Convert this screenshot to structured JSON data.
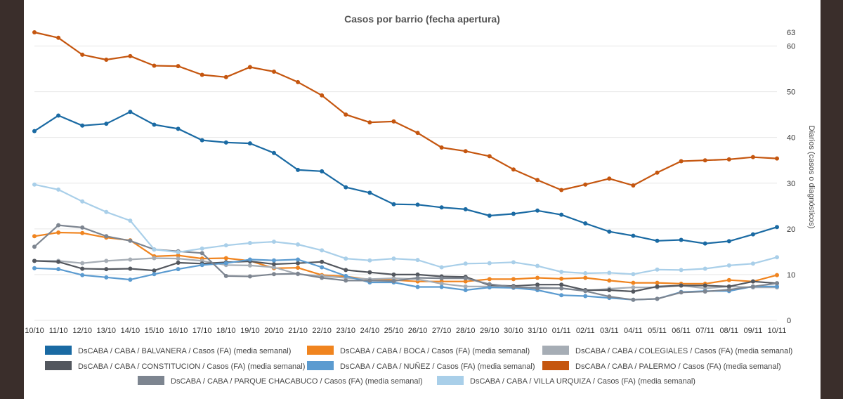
{
  "chart_data": {
    "type": "line",
    "title": "Casos por barrio (fecha apertura)",
    "xlabel": "",
    "ylabel": "Diarios (casos o diagnósticos)",
    "ylim": [
      0,
      63
    ],
    "yticks": [
      0,
      10,
      20,
      30,
      40,
      50,
      60,
      63
    ],
    "grid": true,
    "legend": "bottom",
    "x": [
      "10/10",
      "11/10",
      "12/10",
      "13/10",
      "14/10",
      "15/10",
      "16/10",
      "17/10",
      "18/10",
      "19/10",
      "20/10",
      "21/10",
      "22/10",
      "23/10",
      "24/10",
      "25/10",
      "26/10",
      "27/10",
      "28/10",
      "29/10",
      "30/10",
      "31/10",
      "01/11",
      "02/11",
      "03/11",
      "04/11",
      "05/11",
      "06/11",
      "07/11",
      "08/11",
      "09/11",
      "10/11"
    ],
    "series": [
      {
        "name": "DsCABA / CABA / BALVANERA / Casos (FA) (media semanal)",
        "color": "#1a6aa3",
        "values": [
          41.4,
          44.8,
          42.6,
          43.0,
          45.6,
          42.8,
          41.9,
          39.4,
          38.9,
          38.7,
          36.6,
          32.9,
          32.6,
          29.1,
          27.9,
          25.4,
          25.3,
          24.7,
          24.3,
          22.9,
          23.3,
          24.0,
          23.1,
          21.2,
          19.4,
          18.5,
          17.4,
          17.6,
          16.8,
          17.3,
          18.8,
          20.4
        ]
      },
      {
        "name": "DsCABA / CABA / BOCA / Casos (FA) (media semanal)",
        "color": "#f0841f",
        "values": [
          18.4,
          19.2,
          19.1,
          18.1,
          17.5,
          14.0,
          14.2,
          13.5,
          13.6,
          13.0,
          11.4,
          11.5,
          9.9,
          9.6,
          8.9,
          8.8,
          8.5,
          8.5,
          8.5,
          9.0,
          9.0,
          9.3,
          9.1,
          9.3,
          8.7,
          8.2,
          8.2,
          8.0,
          8.0,
          8.8,
          8.5,
          9.9
        ]
      },
      {
        "name": "DsCABA / CABA / COLEGIALES / Casos (FA) (media semanal)",
        "color": "#a6adb5",
        "values": [
          13.0,
          13.0,
          12.5,
          13.0,
          13.3,
          13.6,
          13.5,
          13.0,
          12.1,
          12.0,
          11.6,
          10.1,
          9.7,
          9.3,
          9.0,
          9.2,
          9.0,
          8.0,
          7.4,
          7.4,
          7.2,
          7.2,
          7.0,
          6.5,
          6.9,
          7.2,
          7.2,
          7.6,
          7.0,
          7.4,
          7.2,
          7.2
        ]
      },
      {
        "name": "DsCABA / CABA / CONSTITUCION / Casos (FA) (media semanal)",
        "color": "#53575e",
        "values": [
          13.0,
          12.8,
          11.3,
          11.2,
          11.3,
          10.9,
          12.6,
          12.4,
          12.7,
          12.9,
          12.3,
          12.5,
          12.8,
          11.0,
          10.5,
          10.0,
          10.0,
          9.6,
          9.5,
          7.7,
          7.5,
          7.8,
          7.8,
          6.6,
          6.6,
          6.3,
          7.4,
          7.6,
          7.6,
          7.4,
          8.5,
          8.1
        ]
      },
      {
        "name": "DsCABA / CABA / NUÑEZ / Casos (FA) (media semanal)",
        "color": "#5b9bd0",
        "values": [
          11.4,
          11.2,
          9.9,
          9.4,
          8.9,
          10.1,
          11.2,
          12.1,
          12.5,
          13.3,
          13.1,
          13.3,
          11.6,
          9.7,
          8.3,
          8.3,
          7.3,
          7.3,
          6.6,
          7.2,
          7.1,
          6.6,
          5.5,
          5.3,
          4.9,
          4.5,
          4.7,
          6.2,
          6.4,
          6.4,
          7.4,
          7.4
        ]
      },
      {
        "name": "DsCABA / CABA / PALERMO / Casos (FA) (media semanal)",
        "color": "#c5560f",
        "values": [
          63.0,
          61.8,
          58.1,
          57.0,
          57.8,
          55.7,
          55.6,
          53.7,
          53.2,
          55.4,
          54.4,
          52.1,
          49.2,
          45.0,
          43.3,
          43.5,
          41.0,
          37.8,
          37.0,
          35.9,
          33.0,
          30.7,
          28.5,
          29.7,
          31.0,
          29.5,
          32.3,
          34.8,
          35.0,
          35.2,
          35.7,
          35.4
        ]
      },
      {
        "name": "DsCABA / CABA / PARQUE CHACABUCO / Casos (FA) (media semanal)",
        "color": "#7d8590",
        "values": [
          16.1,
          20.8,
          20.3,
          18.4,
          17.4,
          15.5,
          15.1,
          14.7,
          9.7,
          9.6,
          10.1,
          10.2,
          9.3,
          8.7,
          8.7,
          8.6,
          9.3,
          9.2,
          9.2,
          7.9,
          7.3,
          7.0,
          7.0,
          6.4,
          5.2,
          4.5,
          4.7,
          6.1,
          6.3,
          6.7,
          7.4,
          8.1
        ]
      },
      {
        "name": "DsCABA / CABA / VILLA URQUIZA / Casos (FA) (media semanal)",
        "color": "#a9cfe9",
        "values": [
          29.7,
          28.6,
          26.0,
          23.7,
          21.8,
          15.5,
          14.9,
          15.7,
          16.4,
          16.9,
          17.2,
          16.6,
          15.3,
          13.5,
          13.1,
          13.5,
          13.2,
          11.6,
          12.4,
          12.5,
          12.7,
          11.9,
          10.6,
          10.3,
          10.4,
          10.1,
          11.1,
          11.0,
          11.3,
          12.0,
          12.4,
          13.8
        ]
      }
    ]
  }
}
